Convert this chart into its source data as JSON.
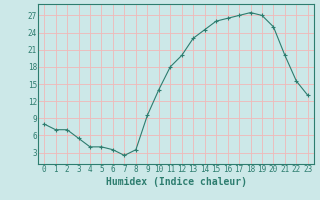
{
  "x": [
    0,
    1,
    2,
    3,
    4,
    5,
    6,
    7,
    8,
    9,
    10,
    11,
    12,
    13,
    14,
    15,
    16,
    17,
    18,
    19,
    20,
    21,
    22,
    23
  ],
  "y": [
    8,
    7,
    7,
    5.5,
    4,
    4,
    3.5,
    2.5,
    3.5,
    9.5,
    14,
    18,
    20,
    23,
    24.5,
    26,
    26.5,
    27,
    27.5,
    27,
    25,
    20,
    15.5,
    13
  ],
  "title": "",
  "xlabel": "Humidex (Indice chaleur)",
  "ylabel": "",
  "xlim": [
    -0.5,
    23.5
  ],
  "ylim": [
    1,
    29
  ],
  "yticks": [
    3,
    6,
    9,
    12,
    15,
    18,
    21,
    24,
    27
  ],
  "xticks": [
    0,
    1,
    2,
    3,
    4,
    5,
    6,
    7,
    8,
    9,
    10,
    11,
    12,
    13,
    14,
    15,
    16,
    17,
    18,
    19,
    20,
    21,
    22,
    23
  ],
  "line_color": "#2d7d6f",
  "marker": "+",
  "marker_color": "#2d7d6f",
  "bg_color": "#cce8e8",
  "grid_color": "#f0b8b8",
  "axis_color": "#2d7d6f",
  "tick_label_fontsize": 5.5,
  "xlabel_fontsize": 7.0
}
